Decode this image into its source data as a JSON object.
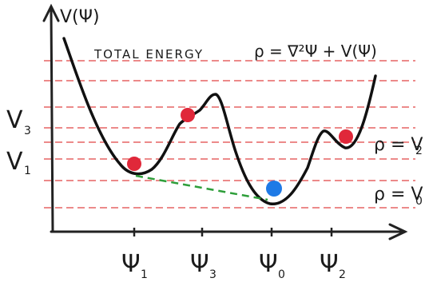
{
  "title": "TOTAL ENERGY",
  "formula": "ρ = ∇²Ψ + V(Ψ)",
  "y_axis_label": "V(Ψ)",
  "y_levels": [
    {
      "label": "V",
      "sub": "3"
    },
    {
      "label": "V",
      "sub": "1"
    }
  ],
  "right_labels": [
    {
      "text": "ρ = V",
      "sub": "2"
    },
    {
      "text": "ρ = V",
      "sub": "0"
    }
  ],
  "x_ticks": [
    {
      "label": "Ψ",
      "sub": "1"
    },
    {
      "label": "Ψ",
      "sub": "3"
    },
    {
      "label": "Ψ",
      "sub": "0"
    },
    {
      "label": "Ψ",
      "sub": "2"
    }
  ],
  "colors": {
    "curve": "#111111",
    "axes": "#222222",
    "red_lines": "#e24a4a",
    "tangent": "#2e9e3a",
    "ball_red": "#e0283a",
    "ball_blue": "#1e7ae6"
  }
}
